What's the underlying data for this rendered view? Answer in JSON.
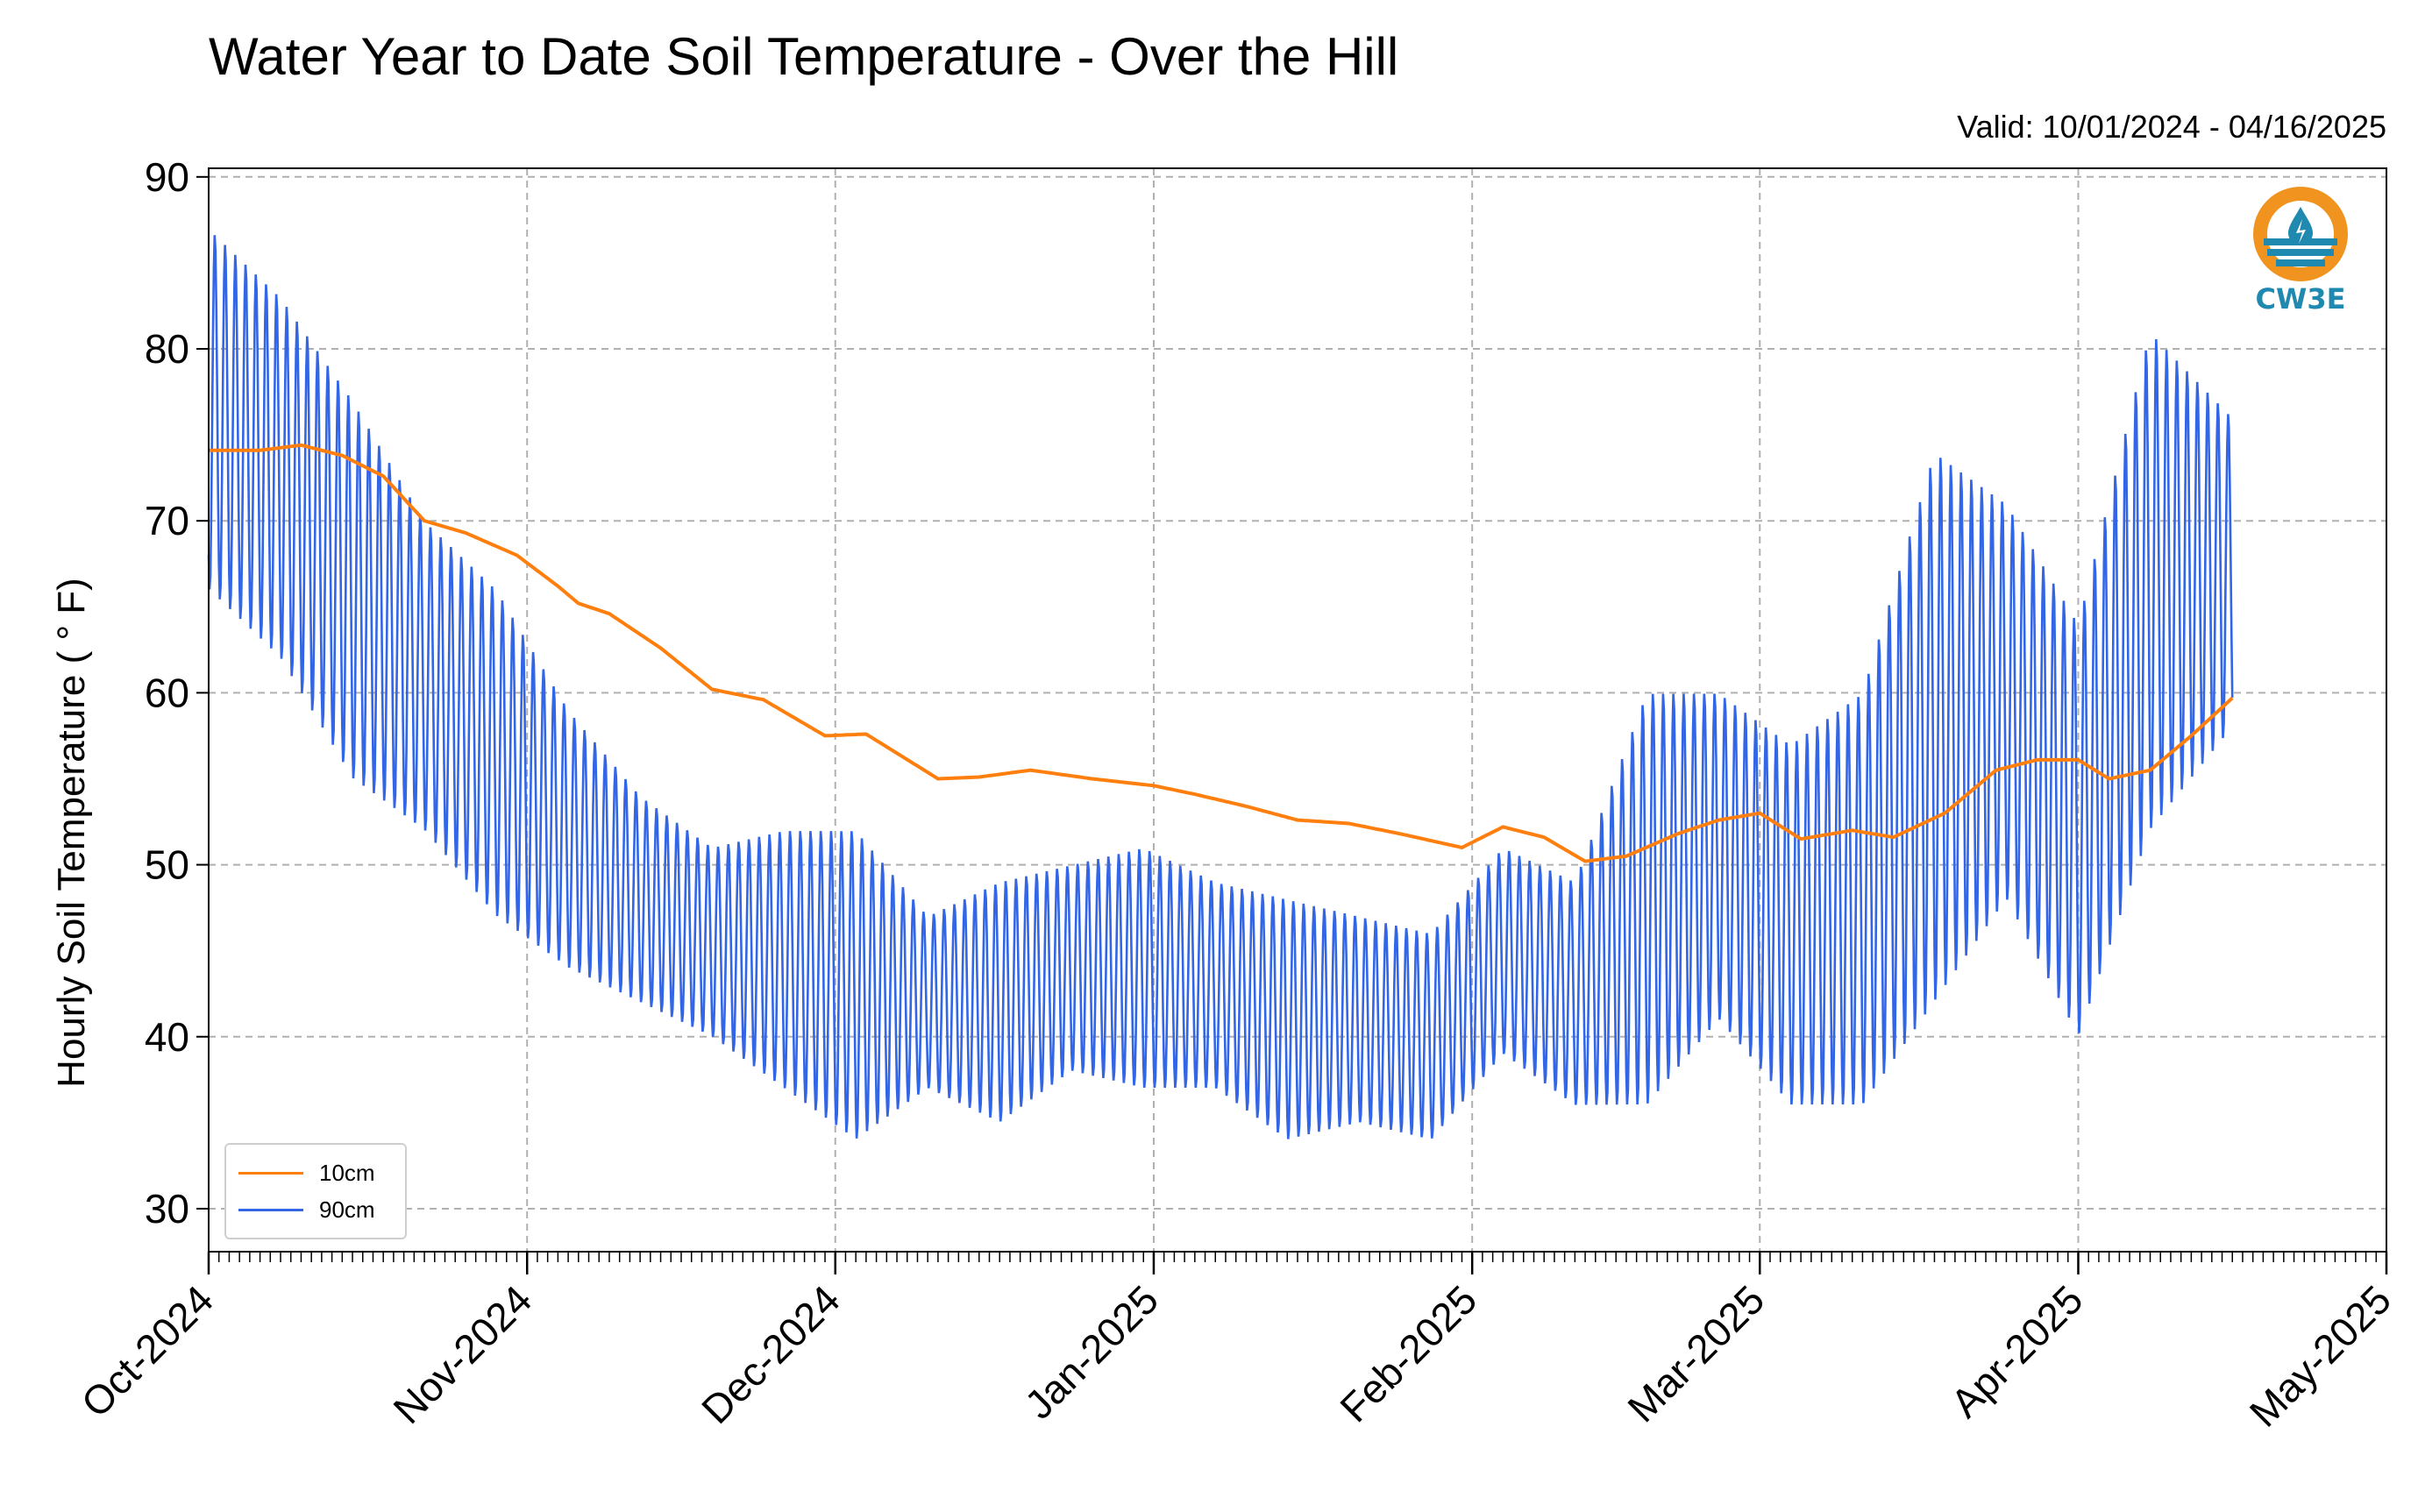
{
  "title": "Water Year to Date Soil Temperature - Over the Hill",
  "subtitle": "Valid: 10/01/2024 - 04/16/2025",
  "logo": {
    "icon": "water-drop-sun-icon",
    "text": "CW3E",
    "color_ring": "#f0931f",
    "color_wave": "#1f89b0"
  },
  "colors": {
    "series_10cm": "#ff7f0e",
    "series_90cm": "#3366e6",
    "grid": "#b0b0b0"
  },
  "chart_data": {
    "type": "line",
    "ylabel": "Hourly Soil Temperature ( ° F)",
    "xlabel": "",
    "x_range": [
      "2024-10-01",
      "2025-05-01"
    ],
    "ylim": [
      27.5,
      90.5
    ],
    "yticks": [
      30,
      40,
      50,
      60,
      70,
      80,
      90
    ],
    "xticks": [
      "Oct-2024",
      "Nov-2024",
      "Dec-2024",
      "Jan-2025",
      "Feb-2025",
      "Mar-2025",
      "Apr-2025",
      "May-2025"
    ],
    "grid": true,
    "legend_position": "lower-left",
    "series": [
      {
        "name": "10cm",
        "x": [
          "2024-10-01",
          "2024-10-06",
          "2024-10-10",
          "2024-10-14",
          "2024-10-18",
          "2024-10-22",
          "2024-10-26",
          "2024-10-31",
          "2024-11-04",
          "2024-11-06",
          "2024-11-09",
          "2024-11-14",
          "2024-11-19",
          "2024-11-24",
          "2024-11-30",
          "2024-12-04",
          "2024-12-11",
          "2024-12-15",
          "2024-12-20",
          "2024-12-26",
          "2025-01-01",
          "2025-01-05",
          "2025-01-10",
          "2025-01-15",
          "2025-01-20",
          "2025-01-25",
          "2025-01-31",
          "2025-02-04",
          "2025-02-08",
          "2025-02-12",
          "2025-02-16",
          "2025-02-21",
          "2025-02-25",
          "2025-03-01",
          "2025-03-05",
          "2025-03-10",
          "2025-03-14",
          "2025-03-19",
          "2025-03-24",
          "2025-03-28",
          "2025-04-01",
          "2025-04-04",
          "2025-04-08",
          "2025-04-12",
          "2025-04-16"
        ],
        "y": [
          74.1,
          74.1,
          74.4,
          73.8,
          72.6,
          70.0,
          69.3,
          68.0,
          66.2,
          65.2,
          64.6,
          62.6,
          60.2,
          59.6,
          57.5,
          57.6,
          55.0,
          55.1,
          55.5,
          55.0,
          54.6,
          54.1,
          53.4,
          52.6,
          52.4,
          51.8,
          51.0,
          52.2,
          51.6,
          50.2,
          50.5,
          51.8,
          52.6,
          53.0,
          51.5,
          52.0,
          51.6,
          53.0,
          55.5,
          56.1,
          56.1,
          55.0,
          55.5,
          57.5,
          59.7
        ]
      },
      {
        "name": "90cm",
        "x": [
          "2024-10-01",
          "2024-10-08",
          "2024-10-15",
          "2024-10-22",
          "2024-10-29",
          "2024-11-05",
          "2024-11-12",
          "2024-11-19",
          "2024-11-26",
          "2024-12-03",
          "2024-12-10",
          "2024-12-17",
          "2024-12-24",
          "2024-12-31",
          "2025-01-07",
          "2025-01-14",
          "2025-01-21",
          "2025-01-28",
          "2025-02-04",
          "2025-02-11",
          "2025-02-18",
          "2025-02-25",
          "2025-03-04",
          "2025-03-11",
          "2025-03-18",
          "2025-03-25",
          "2025-04-01",
          "2025-04-08",
          "2025-04-16"
        ],
        "y_max": [
          87,
          83,
          77,
          70,
          66,
          59,
          54,
          51,
          52,
          52,
          47,
          49,
          50,
          51,
          49,
          48,
          47,
          46,
          51,
          49,
          60,
          60,
          57,
          60,
          74,
          71,
          64,
          81,
          76
        ],
        "y_min": [
          66,
          62,
          55,
          52,
          47,
          44,
          42,
          40,
          37,
          34,
          37,
          35,
          38,
          37,
          37,
          34,
          35,
          34,
          39,
          36,
          36,
          41,
          36,
          36,
          42,
          48,
          40,
          52,
          58
        ]
      }
    ]
  },
  "legend": {
    "items": [
      "10cm",
      "90cm"
    ]
  }
}
